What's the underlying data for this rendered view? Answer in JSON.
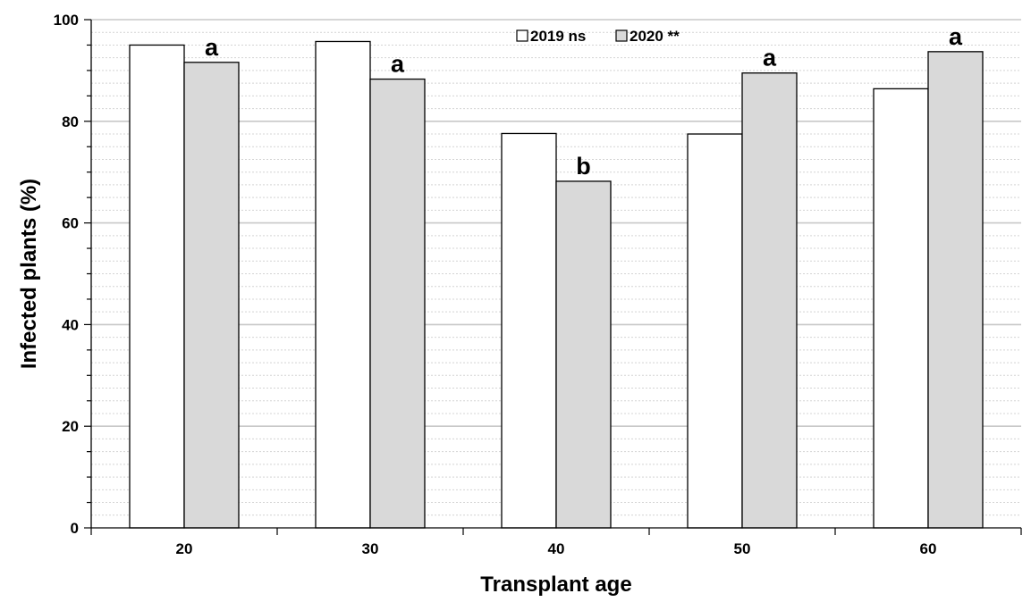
{
  "chart_data": {
    "type": "bar",
    "title": "",
    "xlabel": "Transplant age",
    "ylabel": "Infected plants (%)",
    "categories": [
      "20",
      "30",
      "40",
      "50",
      "60"
    ],
    "ylim": [
      0,
      100
    ],
    "yticks": [
      0,
      20,
      40,
      60,
      80,
      100
    ],
    "grid": true,
    "legend_position": "top-center",
    "series": [
      {
        "name": "2019 ns",
        "values": [
          95.0,
          95.7,
          77.6,
          77.5,
          86.4
        ],
        "color": "#ffffff"
      },
      {
        "name": "2020 **",
        "values": [
          91.6,
          88.3,
          68.2,
          89.5,
          93.7
        ],
        "color": "#d9d9d9"
      }
    ],
    "annotations": {
      "series": "2020 **",
      "labels": [
        "a",
        "a",
        "b",
        "a",
        "a"
      ]
    }
  }
}
